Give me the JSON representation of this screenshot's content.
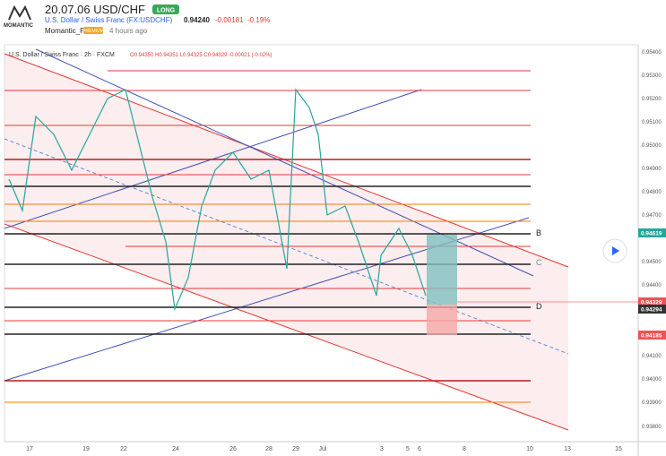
{
  "header": {
    "logo": "MOMANTIC",
    "title": "20.07.06 USD/CHF",
    "badge": "LONG",
    "symbol": "U.S. Dollar / Swiss Franc (FX:USDCHF)",
    "price": "0.94240",
    "change": "-0.00181",
    "change_pct": "-0.19%",
    "author": "Momantic_FX",
    "author_badge": "PREMIUM",
    "time": "4 hours ago"
  },
  "legend": {
    "instrument": "U.S. Dollar / Swiss Franc · 2h · FXCM",
    "ohlc": "O0.94350 H0.94351 L0.94325 C0.94329 -0.00021 (-0.02%)"
  },
  "price_axis": {
    "ticks": [
      "0.95400",
      "0.95300",
      "0.95200",
      "0.95100",
      "0.95000",
      "0.94900",
      "0.94800",
      "0.94700",
      "0.94500",
      "0.94400",
      "0.94100",
      "0.94000",
      "0.93900",
      "0.93800"
    ],
    "labels": [
      "0.94619",
      "0.94329",
      "0.94294",
      "0.94185"
    ]
  },
  "time_axis": {
    "ticks": [
      "17",
      "19",
      "22",
      "24",
      "26",
      "28",
      "29",
      "Jul",
      "3",
      "5",
      "6",
      "8",
      "10",
      "13",
      "15"
    ]
  },
  "levels": [
    "B",
    "C",
    "D"
  ]
}
